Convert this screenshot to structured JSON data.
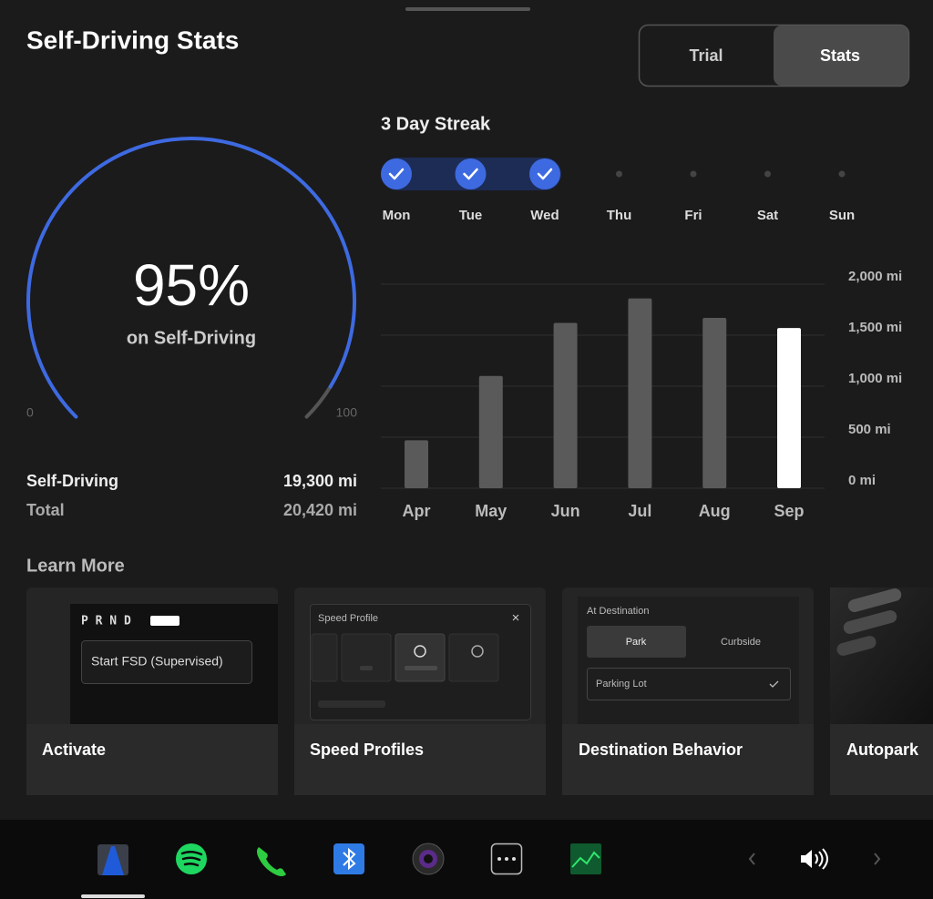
{
  "header": {
    "title": "Self-Driving Stats",
    "tabs": [
      {
        "label": "Trial",
        "active": false
      },
      {
        "label": "Stats",
        "active": true
      }
    ]
  },
  "gauge": {
    "value": 95,
    "value_label": "95%",
    "caption": "on Self-Driving",
    "min": 0,
    "max": 100,
    "color": "#3e6ae1"
  },
  "totals": {
    "rows": [
      {
        "label": "Self-Driving",
        "value": "19,300 mi"
      },
      {
        "label": "Total",
        "value": "20,420 mi"
      }
    ]
  },
  "streak": {
    "title": "3 Day Streak",
    "days": [
      {
        "label": "Mon",
        "done": true
      },
      {
        "label": "Tue",
        "done": true
      },
      {
        "label": "Wed",
        "done": true
      },
      {
        "label": "Thu",
        "done": false
      },
      {
        "label": "Fri",
        "done": false
      },
      {
        "label": "Sat",
        "done": false
      },
      {
        "label": "Sun",
        "done": false
      }
    ]
  },
  "stats_chart": {
    "type": "bar",
    "categories": [
      "Apr",
      "May",
      "Jun",
      "Jul",
      "Aug",
      "Sep"
    ],
    "values": [
      470,
      1100,
      1620,
      1860,
      1670,
      1570
    ],
    "colors": [
      "#5a5a5a",
      "#5a5a5a",
      "#5a5a5a",
      "#5a5a5a",
      "#5a5a5a",
      "#ffffff"
    ],
    "ylim": [
      0,
      2000
    ],
    "yticks": [
      {
        "value": 0,
        "label": "0 mi"
      },
      {
        "value": 500,
        "label": "500 mi"
      },
      {
        "value": 1000,
        "label": "1,000 mi"
      },
      {
        "value": 1500,
        "label": "1,500 mi"
      },
      {
        "value": 2000,
        "label": "2,000 mi"
      }
    ],
    "grid": true
  },
  "learn_more": {
    "title": "Learn More",
    "cards": [
      {
        "title": "Activate",
        "preview": {
          "gear": "P R N D",
          "button": "Start FSD (Supervised)"
        }
      },
      {
        "title": "Speed Profiles",
        "preview": {
          "heading": "Speed Profile",
          "close": "×"
        }
      },
      {
        "title": "Destination Behavior",
        "preview": {
          "heading": "At Destination",
          "option_active": "Park",
          "option": "Curbside",
          "field": "Parking Lot"
        }
      },
      {
        "title": "Autopark"
      }
    ]
  }
}
